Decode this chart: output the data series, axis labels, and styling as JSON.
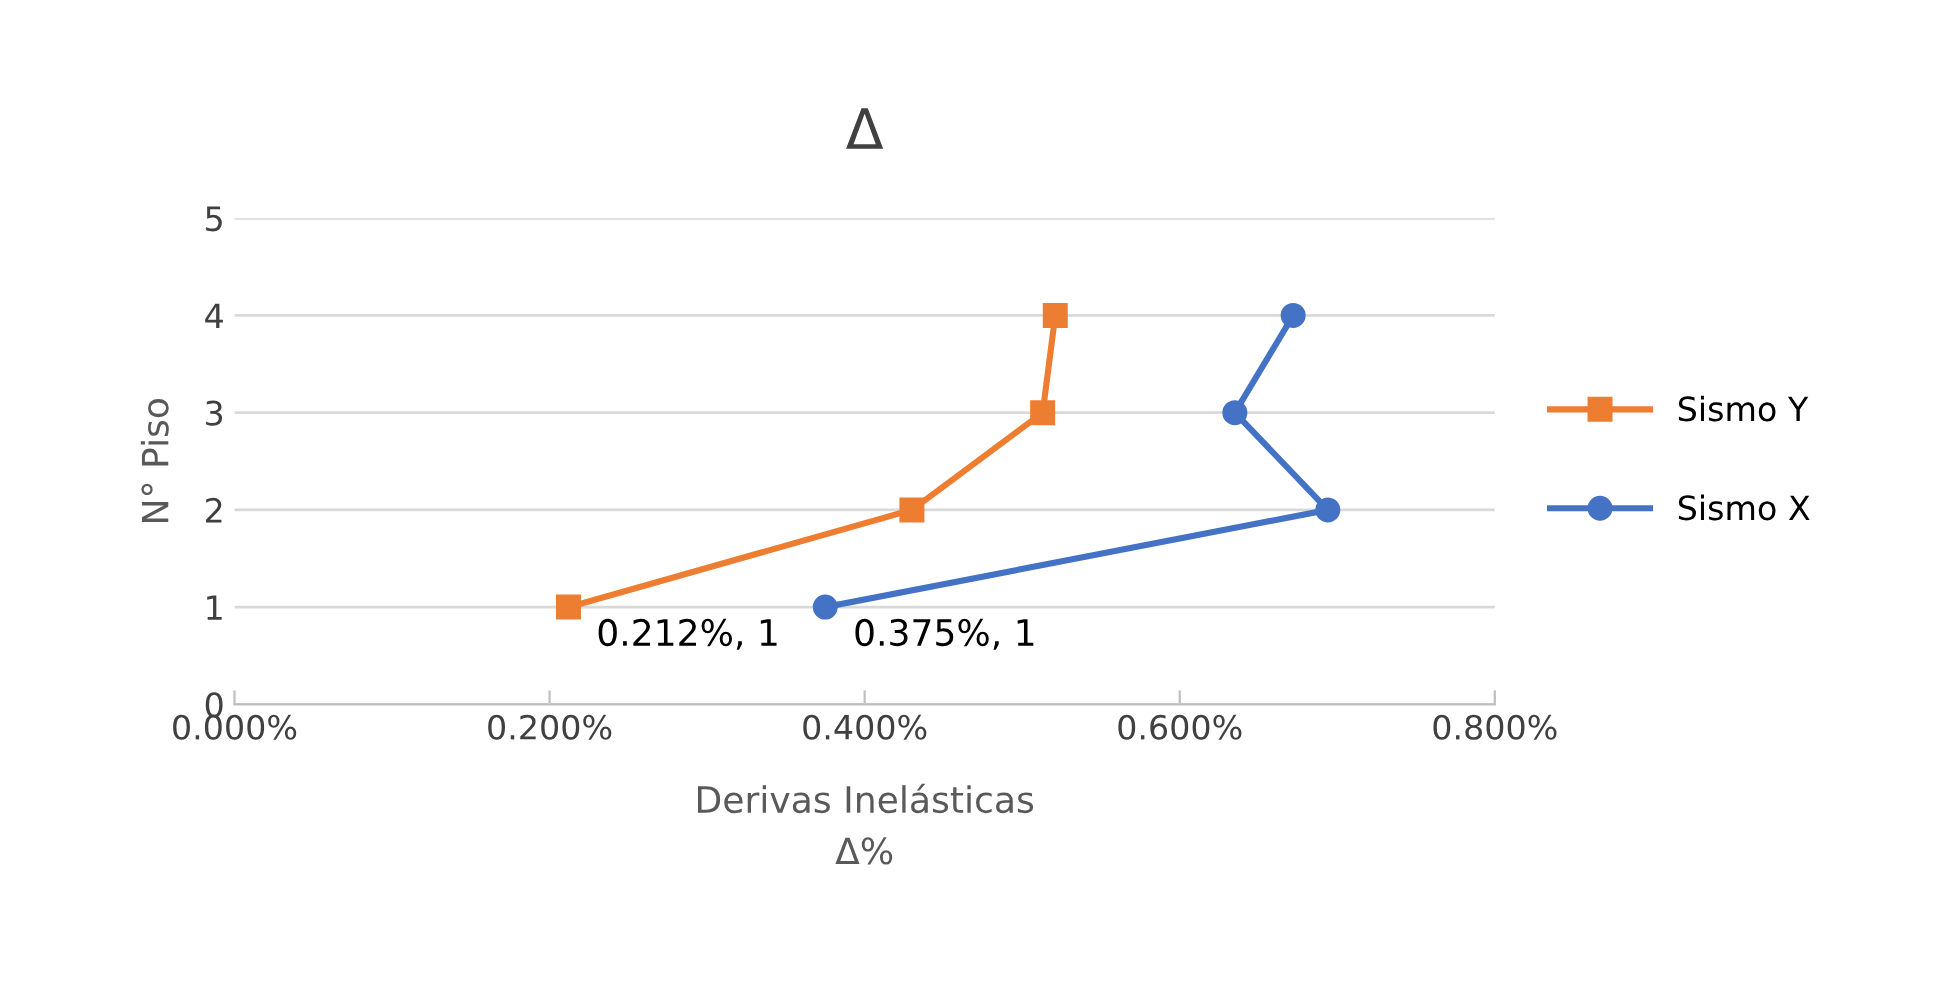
{
  "chart_data": {
    "type": "line",
    "title": "Δ",
    "xlabel": "Derivas Inelásticas\nΔ%",
    "ylabel": "N° Piso",
    "series": [
      {
        "name": "Sismo Y",
        "color": "#ed7d31",
        "marker": "square",
        "x": [
          0.212,
          0.43,
          0.513,
          0.521
        ],
        "values": [
          1,
          2,
          3,
          4
        ]
      },
      {
        "name": "Sismo X",
        "color": "#4472c4",
        "marker": "circle",
        "x": [
          0.375,
          0.694,
          0.635,
          0.672
        ],
        "values": [
          1,
          2,
          3,
          4
        ]
      }
    ],
    "xlim": [
      0,
      0.8
    ],
    "xticks": [
      {
        "value": 0,
        "label": "0.000%"
      },
      {
        "value": 0.2,
        "label": "0.200%"
      },
      {
        "value": 0.4,
        "label": "0.400%"
      },
      {
        "value": 0.6,
        "label": "0.600%"
      },
      {
        "value": 0.8,
        "label": "0.800%"
      }
    ],
    "ylim": [
      0,
      5
    ],
    "yticks": [
      0,
      1,
      2,
      3,
      4,
      5
    ],
    "grid": "y",
    "legend": "right",
    "line_style": "solid",
    "annotations": [
      {
        "text": "0.212%, 1",
        "x": 0.212,
        "y": 1
      },
      {
        "text": "0.375%, 1",
        "x": 0.375,
        "y": 1
      }
    ]
  }
}
